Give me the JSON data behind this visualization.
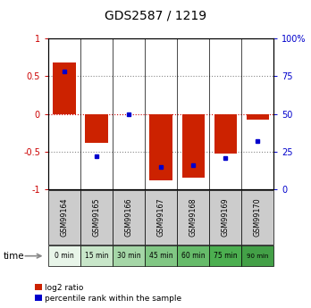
{
  "title": "GDS2587 / 1219",
  "samples": [
    "GSM99164",
    "GSM99165",
    "GSM99166",
    "GSM99167",
    "GSM99168",
    "GSM99169",
    "GSM99170"
  ],
  "time_labels": [
    "0 min",
    "15 min",
    "30 min",
    "45 min",
    "60 min",
    "75 min",
    "90 min"
  ],
  "time_colors": [
    "#e8f5e9",
    "#c8e6c9",
    "#a5d6a7",
    "#81c784",
    "#66bb6a",
    "#4caf50",
    "#43a047"
  ],
  "log2_ratio": [
    0.68,
    -0.38,
    0.0,
    -0.88,
    -0.85,
    -0.52,
    -0.08
  ],
  "percentile_rank": [
    78,
    22,
    50,
    15,
    16,
    21,
    32
  ],
  "bar_color": "#cc2200",
  "dot_color": "#0000cc",
  "ylim_left": [
    -1,
    1
  ],
  "ylim_right": [
    0,
    100
  ],
  "yticks_left": [
    -1,
    -0.5,
    0,
    0.5,
    1
  ],
  "yticks_right": [
    0,
    25,
    50,
    75,
    100
  ],
  "ytick_labels_left": [
    "-1",
    "-0.5",
    "0",
    "0.5",
    "1"
  ],
  "ytick_labels_right": [
    "0",
    "25",
    "50",
    "75",
    "100%"
  ],
  "hline_color": "#cc0000",
  "dot_hline_color": "#cc0000",
  "grid_color": "#888888",
  "sample_box_color": "#cccccc",
  "bar_width": 0.7,
  "legend_items": [
    "log2 ratio",
    "percentile rank within the sample"
  ],
  "fig_width": 3.48,
  "fig_height": 3.45,
  "dpi": 100
}
